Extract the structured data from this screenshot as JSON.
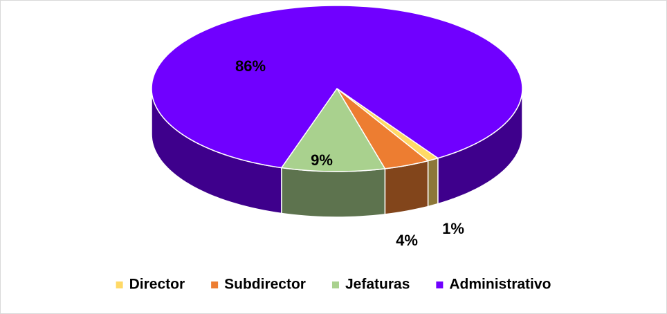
{
  "chart_data": {
    "type": "pie",
    "categories": [
      "Director",
      "Subdirector",
      "Jefaturas",
      "Administrativo"
    ],
    "values": [
      1,
      4,
      9,
      86
    ],
    "value_labels": [
      "1%",
      "4%",
      "9%",
      "86%"
    ],
    "colors": [
      "#ffd966",
      "#ed7d31",
      "#a9d18e",
      "#7000ff"
    ],
    "legend": "bottom"
  }
}
